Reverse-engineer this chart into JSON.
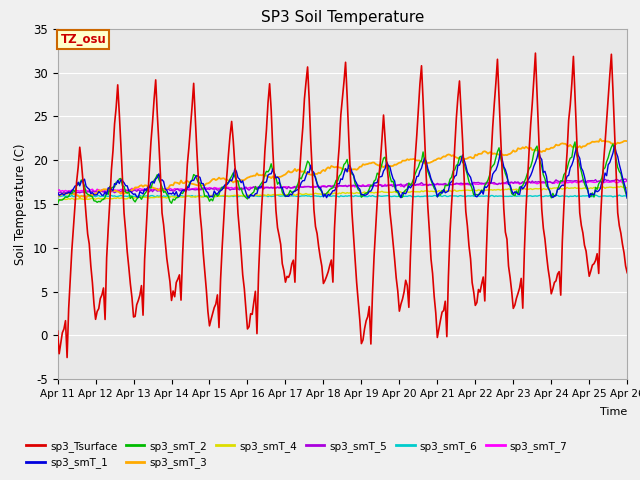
{
  "title": "SP3 Soil Temperature",
  "ylabel": "Soil Temperature (C)",
  "xlabel": "Time",
  "ylim": [
    -5,
    35
  ],
  "xlim": [
    0,
    360
  ],
  "bg_color": "#e8e8e8",
  "plot_bg_color": "#e8e8e8",
  "tz_label": "TZ_osu",
  "tz_box_color": "#ffffcc",
  "tz_border_color": "#cc6600",
  "tz_text_color": "#cc0000",
  "x_tick_labels": [
    "Apr 11",
    "Apr 12",
    "Apr 13",
    "Apr 14",
    "Apr 15",
    "Apr 16",
    "Apr 17",
    "Apr 18",
    "Apr 19",
    "Apr 20",
    "Apr 21",
    "Apr 22",
    "Apr 23",
    "Apr 24",
    "Apr 25",
    "Apr 26"
  ],
  "x_tick_positions": [
    0,
    24,
    48,
    72,
    96,
    120,
    144,
    168,
    192,
    216,
    240,
    264,
    288,
    312,
    336,
    360
  ],
  "series_colors": {
    "sp3_Tsurface": "#dd0000",
    "sp3_smT_1": "#0000dd",
    "sp3_smT_2": "#00bb00",
    "sp3_smT_3": "#ffaa00",
    "sp3_smT_4": "#dddd00",
    "sp3_smT_5": "#aa00dd",
    "sp3_smT_6": "#00cccc",
    "sp3_smT_7": "#ff00ff"
  },
  "ytick_labels": [
    "-5",
    "0",
    "5",
    "10",
    "15",
    "20",
    "25",
    "30",
    "35"
  ],
  "ytick_positions": [
    -5,
    0,
    5,
    10,
    15,
    20,
    25,
    30,
    35
  ],
  "figsize": [
    6.4,
    4.8
  ],
  "dpi": 100
}
